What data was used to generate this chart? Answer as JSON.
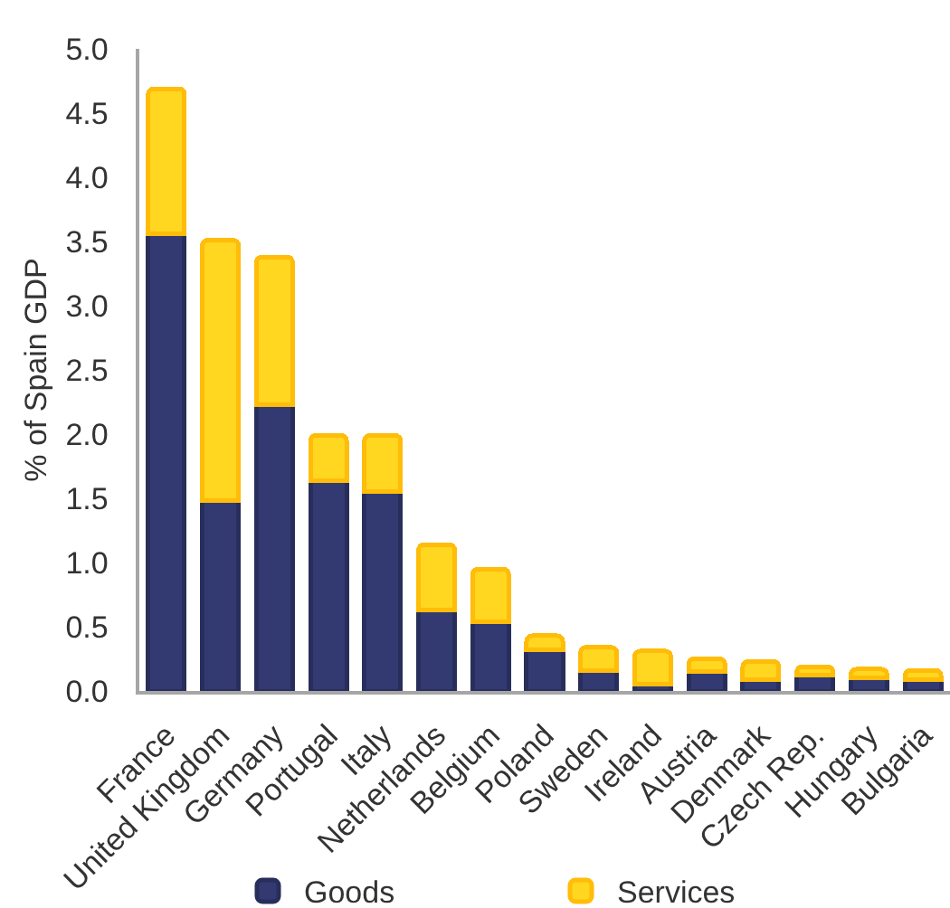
{
  "chart_data": {
    "type": "bar",
    "stacked": true,
    "ylabel": "% of Spain GDP",
    "categories": [
      "France",
      "United Kingdom",
      "Germany",
      "Portugal",
      "Italy",
      "Netherlands",
      "Belgium",
      "Poland",
      "Sweden",
      "Ireland",
      "Austria",
      "Denmark",
      "Czech Rep.",
      "Hungary",
      "Bulgaria"
    ],
    "series": [
      {
        "name": "Goods",
        "color": "#333a72",
        "values": [
          3.56,
          1.48,
          2.23,
          1.64,
          1.55,
          0.63,
          0.54,
          0.32,
          0.16,
          0.05,
          0.15,
          0.09,
          0.12,
          0.1,
          0.09
        ]
      },
      {
        "name": "Services",
        "color": "#ffd620",
        "values": [
          1.13,
          2.03,
          1.15,
          0.35,
          0.44,
          0.51,
          0.41,
          0.11,
          0.18,
          0.26,
          0.1,
          0.14,
          0.07,
          0.07,
          0.07
        ]
      }
    ],
    "ylim": [
      0,
      5
    ],
    "yticks": [
      {
        "value": 0,
        "label": "0.0"
      },
      0.5,
      {
        "value": 1,
        "label": "1.0"
      },
      1.5,
      {
        "value": 2,
        "label": "2.0"
      },
      2.5,
      {
        "value": 3,
        "label": "3.0"
      },
      3.5,
      {
        "value": 4,
        "label": "4.0"
      },
      4.5,
      {
        "value": 5,
        "label": "5.0"
      }
    ],
    "legend": "bottom"
  }
}
